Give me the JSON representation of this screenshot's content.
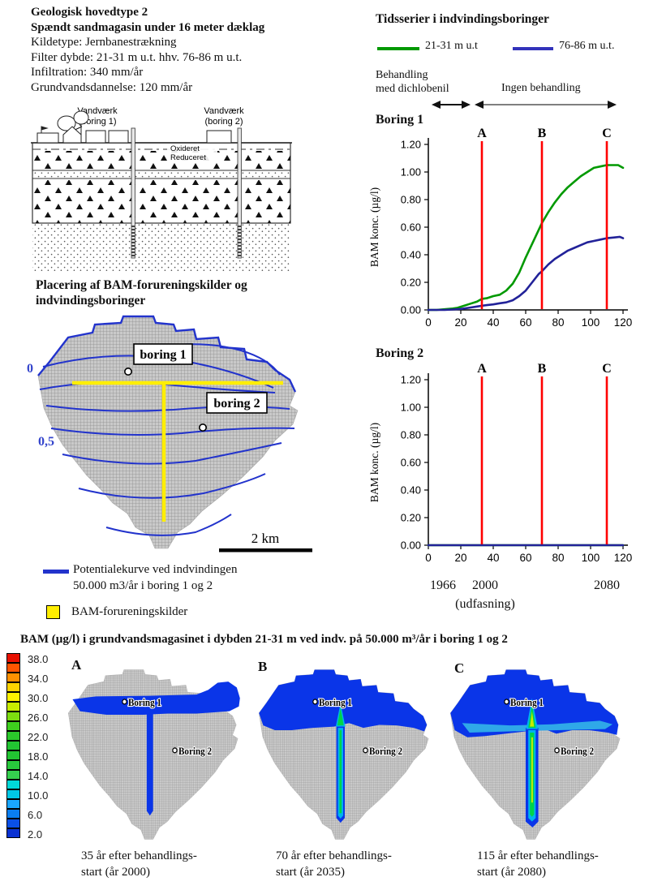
{
  "info": {
    "title1": "Geologisk hovedtype 2",
    "title2": "Spændt sandmagasin under 16 meter dæklag",
    "line1": "Kildetype: Jernbanestrækning",
    "line2": "Filter dybde: 21-31 m u.t. hhv. 76-86 m u.t.",
    "line3": "Infiltration: 340 mm/år",
    "line4": "Grundvandsdannelse: 120 mm/år"
  },
  "cross_section": {
    "well1_label_line1": "Vandværk",
    "well1_label_line2": "(boring 1)",
    "well2_label_line1": "Vandværk",
    "well2_label_line2": "(boring 2)",
    "oxidized": "Oxideret",
    "reduced": "Reduceret"
  },
  "map": {
    "title_line1": "Placering af BAM-forureningskilder og",
    "title_line2": "indvindingsboringer",
    "contour_label_zero": "0",
    "contour_label_half": "0,5",
    "boring1": "boring 1",
    "boring2": "boring 2",
    "scale_label": "2 km",
    "legend_contour_line1": "Potentialekurve ved indvindingen",
    "legend_contour_line2": "50.000 m3/år i boring 1 og 2",
    "legend_source": "BAM-forureningskilder",
    "contour_color": "#2233cc",
    "source_color": "#ffee00"
  },
  "timeseries": {
    "title": "Tidsserier i indvindingsboringer",
    "legend1_label": "21-31 m u.t",
    "legend1_color": "#009900",
    "legend2_label": "76-86 m u.t.",
    "legend2_color": "#3333bb",
    "phase1_line1": "Behandling",
    "phase1_line2": "med dichlobenil",
    "phase2": "Ingen behandling",
    "chart1_title": "Boring 1",
    "chart2_title": "Boring 2",
    "year_start": "1966",
    "year_phaseout": "2000",
    "year_end": "2080",
    "phaseout_note": "(udfasning)"
  },
  "chart_data": [
    {
      "id": "boring1",
      "type": "line",
      "title": "Boring 1",
      "ylabel": "BAM konc. (µg/l)",
      "xlim": [
        0,
        120
      ],
      "ylim": [
        0,
        1.2
      ],
      "xticks": [
        0,
        20,
        40,
        60,
        80,
        100,
        120
      ],
      "yticks": [
        "0.00",
        "0.20",
        "0.40",
        "0.60",
        "0.80",
        "1.00",
        "1.20"
      ],
      "x_axis_years": {
        "0": "1966",
        "34": "2000",
        "114": "2080"
      },
      "vlines": [
        {
          "label": "A",
          "x": 33,
          "color": "#ff0000"
        },
        {
          "label": "B",
          "x": 70,
          "color": "#ff0000"
        },
        {
          "label": "C",
          "x": 110,
          "color": "#ff0000"
        }
      ],
      "series": [
        {
          "name": "21-31 m u.t",
          "color": "#009900",
          "points": [
            [
              0,
              0
            ],
            [
              5,
              0
            ],
            [
              10,
              0.005
            ],
            [
              15,
              0.01
            ],
            [
              18,
              0.015
            ],
            [
              22,
              0.03
            ],
            [
              26,
              0.045
            ],
            [
              30,
              0.06
            ],
            [
              33,
              0.08
            ],
            [
              36,
              0.085
            ],
            [
              40,
              0.1
            ],
            [
              44,
              0.11
            ],
            [
              48,
              0.14
            ],
            [
              52,
              0.19
            ],
            [
              56,
              0.27
            ],
            [
              60,
              0.38
            ],
            [
              64,
              0.48
            ],
            [
              68,
              0.58
            ],
            [
              70,
              0.63
            ],
            [
              74,
              0.71
            ],
            [
              78,
              0.78
            ],
            [
              82,
              0.84
            ],
            [
              86,
              0.89
            ],
            [
              90,
              0.93
            ],
            [
              94,
              0.97
            ],
            [
              98,
              1.0
            ],
            [
              102,
              1.03
            ],
            [
              106,
              1.04
            ],
            [
              110,
              1.05
            ],
            [
              114,
              1.05
            ],
            [
              117,
              1.05
            ],
            [
              120,
              1.03
            ]
          ]
        },
        {
          "name": "76-86 m u.t.",
          "color": "#222299",
          "points": [
            [
              0,
              0
            ],
            [
              10,
              0
            ],
            [
              15,
              0.003
            ],
            [
              20,
              0.007
            ],
            [
              25,
              0.015
            ],
            [
              30,
              0.025
            ],
            [
              33,
              0.03
            ],
            [
              36,
              0.035
            ],
            [
              40,
              0.04
            ],
            [
              44,
              0.048
            ],
            [
              48,
              0.055
            ],
            [
              52,
              0.07
            ],
            [
              56,
              0.1
            ],
            [
              60,
              0.14
            ],
            [
              64,
              0.2
            ],
            [
              68,
              0.26
            ],
            [
              70,
              0.28
            ],
            [
              74,
              0.33
            ],
            [
              78,
              0.37
            ],
            [
              82,
              0.4
            ],
            [
              86,
              0.43
            ],
            [
              90,
              0.45
            ],
            [
              94,
              0.47
            ],
            [
              98,
              0.49
            ],
            [
              102,
              0.5
            ],
            [
              106,
              0.51
            ],
            [
              110,
              0.52
            ],
            [
              114,
              0.525
            ],
            [
              118,
              0.53
            ],
            [
              120,
              0.52
            ]
          ]
        }
      ]
    },
    {
      "id": "boring2",
      "type": "line",
      "title": "Boring 2",
      "ylabel": "BAM konc. (µg/l)",
      "xlim": [
        0,
        120
      ],
      "ylim": [
        0,
        1.2
      ],
      "xticks": [
        0,
        20,
        40,
        60,
        80,
        100,
        120
      ],
      "yticks": [
        "0.00",
        "0.20",
        "0.40",
        "0.60",
        "0.80",
        "1.00",
        "1.20"
      ],
      "x_axis_years": {
        "0": "1966",
        "34": "2000",
        "114": "2080"
      },
      "vlines": [
        {
          "label": "A",
          "x": 33,
          "color": "#ff0000"
        },
        {
          "label": "B",
          "x": 70,
          "color": "#ff0000"
        },
        {
          "label": "C",
          "x": 110,
          "color": "#ff0000"
        }
      ],
      "series": [
        {
          "name": "21-31 m u.t",
          "color": "#009900",
          "points": [
            [
              0,
              0
            ],
            [
              120,
              0
            ]
          ]
        },
        {
          "name": "76-86 m u.t.",
          "color": "#222299",
          "points": [
            [
              0,
              0
            ],
            [
              120,
              0
            ]
          ]
        }
      ]
    }
  ],
  "bottom": {
    "title": "BAM (µg/l) i grundvandsmagasinet i dybden 21-31 m ved indv. på 50.000 m³/år i boring 1 og 2",
    "scale": [
      {
        "value": 38,
        "label": "38.0",
        "color": "#e81000"
      },
      {
        "value": 36,
        "label": "",
        "color": "#ff5500"
      },
      {
        "value": 34,
        "label": "34.0",
        "color": "#ff9100"
      },
      {
        "value": 32,
        "label": "",
        "color": "#ffd500"
      },
      {
        "value": 30,
        "label": "30.0",
        "color": "#fff200"
      },
      {
        "value": 28,
        "label": "",
        "color": "#c8ec00"
      },
      {
        "value": 26,
        "label": "26.0",
        "color": "#7ddc10"
      },
      {
        "value": 24,
        "label": "",
        "color": "#3ecf1e"
      },
      {
        "value": 22,
        "label": "22.0",
        "color": "#2bc82b"
      },
      {
        "value": 20,
        "label": "",
        "color": "#22c432"
      },
      {
        "value": 18,
        "label": "18.0",
        "color": "#22c432"
      },
      {
        "value": 16,
        "label": "",
        "color": "#28c83c"
      },
      {
        "value": 14,
        "label": "14.0",
        "color": "#35cf4e"
      },
      {
        "value": 12,
        "label": "",
        "color": "#00d8d8"
      },
      {
        "value": 10,
        "label": "10.0",
        "color": "#00c8e6"
      },
      {
        "value": 8,
        "label": "",
        "color": "#19a6ff"
      },
      {
        "value": 6,
        "label": "6.0",
        "color": "#0a7ef0"
      },
      {
        "value": 4,
        "label": "",
        "color": "#0a50e6"
      },
      {
        "value": 2,
        "label": "2.0",
        "color": "#0a32d2"
      }
    ],
    "maps": [
      {
        "letter": "A",
        "boring1": "Boring 1",
        "boring2": "Boring 2",
        "caption_line1": "35 år efter behandlings-",
        "caption_line2": "start (år 2000)"
      },
      {
        "letter": "B",
        "boring1": "Boring 1",
        "boring2": "Boring 2",
        "caption_line1": "70 år efter behandlings-",
        "caption_line2": "start (år 2035)"
      },
      {
        "letter": "C",
        "boring1": "Boring 1",
        "boring2": "Boring 2",
        "caption_line1": "115 år efter behandlings-",
        "caption_line2": "start (år 2080)"
      }
    ]
  }
}
